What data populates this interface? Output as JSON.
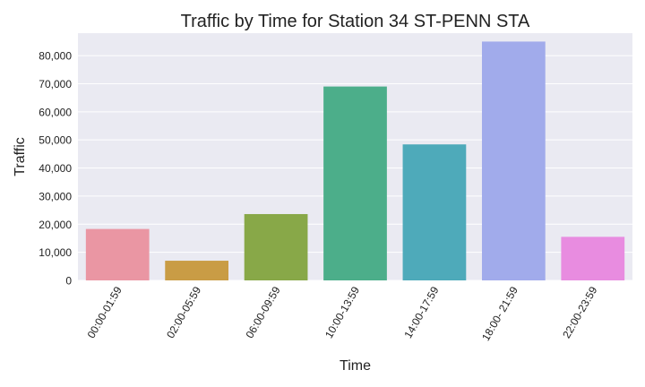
{
  "chart_data": {
    "type": "bar",
    "title": "Traffic by Time for Station 34 ST-PENN STA",
    "xlabel": "Time",
    "ylabel": "Traffic",
    "categories": [
      "00:00-01:59",
      "02:00-05:59",
      "06:00-09:59",
      "10:00-13:59",
      "14:00-17:59",
      "18:00- 21:59",
      "22:00-23:59"
    ],
    "values": [
      18300,
      7000,
      23600,
      69000,
      48400,
      85000,
      15500
    ],
    "colors": [
      "#ea96a3",
      "#c99c45",
      "#88a848",
      "#4cae8a",
      "#4eaaba",
      "#a1abeb",
      "#e88ce0"
    ],
    "ylim": [
      0,
      88000
    ],
    "yticks": [
      0,
      10000,
      20000,
      30000,
      40000,
      50000,
      60000,
      70000,
      80000
    ],
    "ytick_labels": [
      "0",
      "10,000",
      "20,000",
      "30,000",
      "40,000",
      "50,000",
      "60,000",
      "70,000",
      "80,000"
    ],
    "grid": true,
    "background": "#eaeaf2",
    "grid_color": "#ffffff"
  }
}
